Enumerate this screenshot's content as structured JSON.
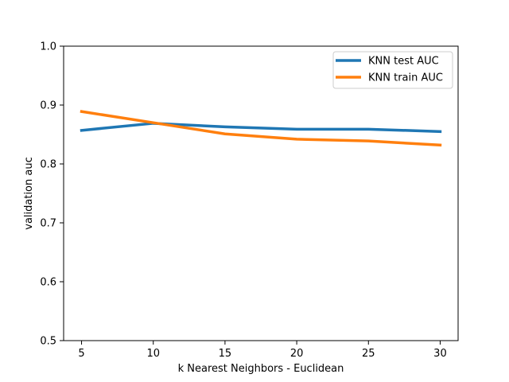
{
  "chart_data": {
    "type": "line",
    "title": "",
    "xlabel": "k Nearest Neighbors - Euclidean",
    "ylabel": "validation auc",
    "x": [
      5,
      10,
      15,
      20,
      25,
      30
    ],
    "xticks": [
      "5",
      "10",
      "15",
      "20",
      "25",
      "30"
    ],
    "yticks": [
      "0.5",
      "0.6",
      "0.7",
      "0.8",
      "0.9",
      "1.0"
    ],
    "xlim": [
      3.75,
      31.25
    ],
    "ylim": [
      0.5,
      1.0
    ],
    "grid": false,
    "legend_position": "upper right",
    "series": [
      {
        "name": "KNN test AUC",
        "color": "#1f77b4",
        "values": [
          0.857,
          0.869,
          0.863,
          0.859,
          0.859,
          0.855
        ]
      },
      {
        "name": "KNN train AUC",
        "color": "#ff7f0e",
        "values": [
          0.889,
          0.87,
          0.851,
          0.842,
          0.839,
          0.832
        ]
      }
    ]
  }
}
